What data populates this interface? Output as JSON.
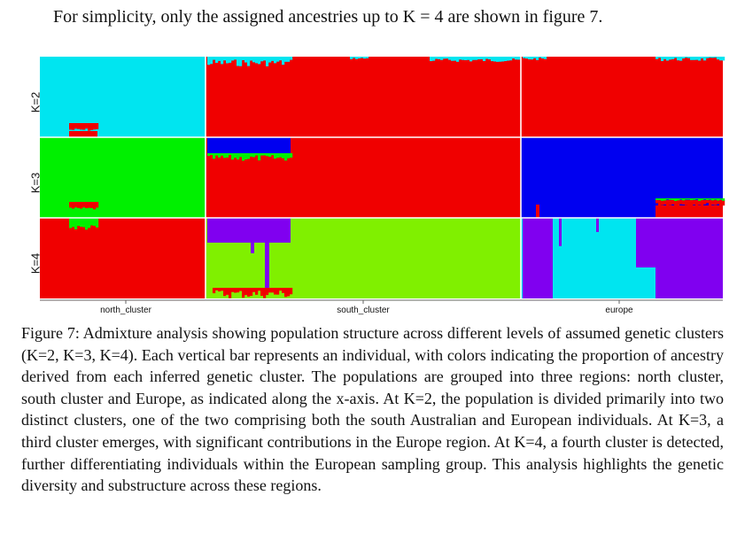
{
  "intro_text": "For simplicity, only the assigned ancestries up to K = 4 are shown in figure 7.",
  "caption": "Figure 7: Admixture analysis showing population structure across different levels of assumed genetic clusters (K=2, K=3, K=4). Each vertical bar represents an individual, with colors indicating the proportion of ancestry derived from each inferred genetic cluster. The populations are grouped into three regions: north cluster, south cluster and Europe, as indicated along the x-axis. At K=2, the population is divided primarily into two distinct clusters, one of the two comprising both the south Australian and European individuals. At K=3, a third cluster emerges, with significant contributions in the Europe region. At K=4, a fourth cluster is detected, further differentiating individuals within the European sampling group. This analysis highlights the genetic diversity and substructure across these regions.",
  "chart_data": {
    "type": "bar",
    "stacked": true,
    "rows": [
      "K=2",
      "K=3",
      "K=4"
    ],
    "groups": [
      {
        "label": "north_cluster",
        "n_individuals": 38
      },
      {
        "label": "south_cluster",
        "n_individuals": 85
      },
      {
        "label": "europe",
        "n_individuals": 60
      }
    ],
    "colors": {
      "cyan": "#00e5f0",
      "red": "#f00000",
      "green": "#00f000",
      "blue": "#0000f0",
      "lime": "#80f000",
      "purple": "#8000f0"
    },
    "ancestry_proportions": {
      "K=2": {
        "north_cluster": [
          {
            "cluster": "cyan",
            "proportion": 0.9
          },
          {
            "cluster": "red",
            "proportion": 0.1
          }
        ],
        "south_cluster": [
          {
            "cluster": "red",
            "proportion": 0.93
          },
          {
            "cluster": "cyan",
            "proportion": 0.07
          }
        ],
        "europe": [
          {
            "cluster": "red",
            "proportion": 0.98
          },
          {
            "cluster": "cyan",
            "proportion": 0.02
          }
        ]
      },
      "K=3": {
        "north_cluster": [
          {
            "cluster": "green",
            "proportion": 0.9
          },
          {
            "cluster": "red",
            "proportion": 0.1
          }
        ],
        "south_cluster": [
          {
            "cluster": "red",
            "proportion": 0.9
          },
          {
            "cluster": "blue",
            "proportion": 0.06
          },
          {
            "cluster": "green",
            "proportion": 0.04
          }
        ],
        "europe": [
          {
            "cluster": "blue",
            "proportion": 0.9
          },
          {
            "cluster": "red",
            "proportion": 0.08
          },
          {
            "cluster": "green",
            "proportion": 0.02
          }
        ]
      },
      "K=4": {
        "north_cluster": [
          {
            "cluster": "red",
            "proportion": 0.9
          },
          {
            "cluster": "green",
            "proportion": 0.1
          }
        ],
        "south_cluster": [
          {
            "cluster": "lime",
            "proportion": 0.85
          },
          {
            "cluster": "purple",
            "proportion": 0.13
          },
          {
            "cluster": "red",
            "proportion": 0.02
          }
        ],
        "europe": [
          {
            "cluster": "cyan",
            "proportion": 0.55
          },
          {
            "cluster": "purple",
            "proportion": 0.45
          }
        ]
      }
    }
  }
}
